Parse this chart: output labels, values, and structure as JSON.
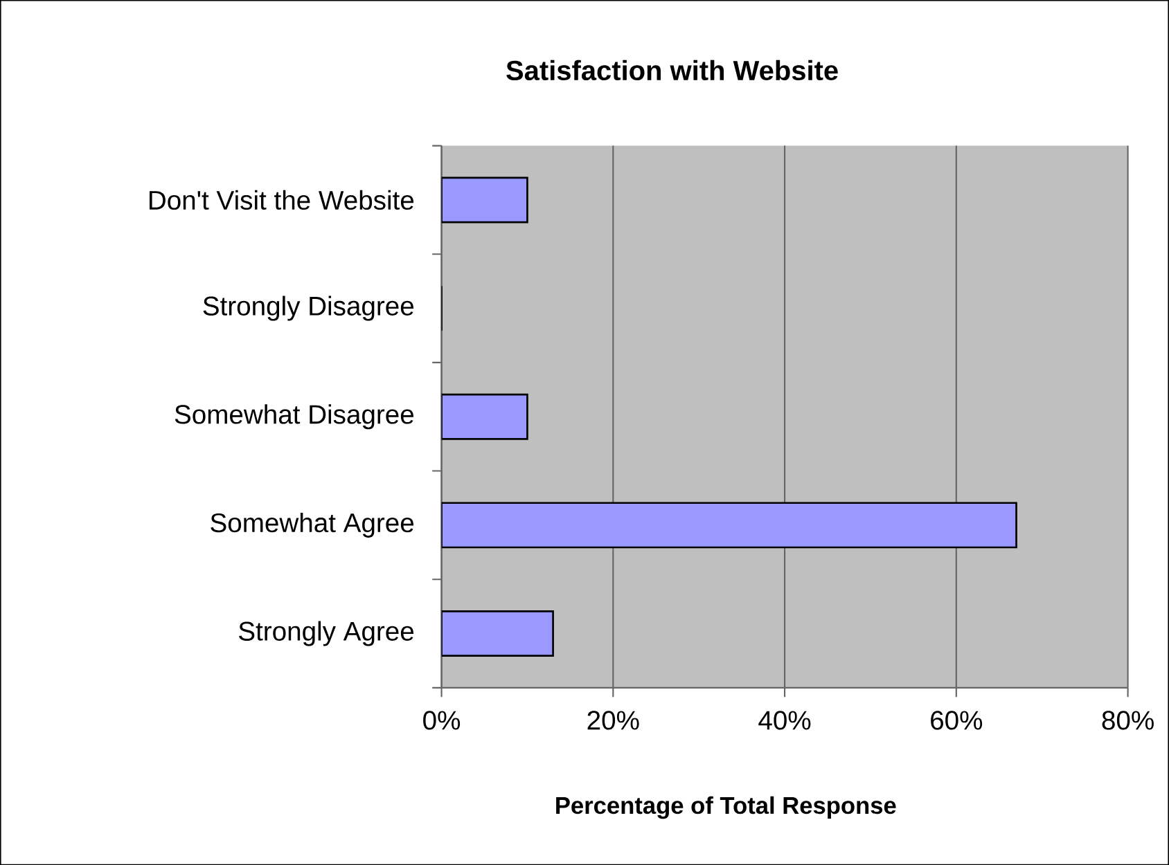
{
  "chart_data": {
    "type": "bar",
    "orientation": "horizontal",
    "title": "Satisfaction with Website",
    "xlabel": "Percentage of Total Response",
    "categories": [
      "Don't Visit the Website",
      "Strongly Disagree",
      "Somewhat Disagree",
      "Somewhat Agree",
      "Strongly Agree"
    ],
    "values": [
      10,
      0,
      10,
      67,
      13
    ],
    "color": "#9999ff",
    "xlim": [
      0,
      80
    ],
    "xticks": [
      {
        "value": 0,
        "label": "0%"
      },
      {
        "value": 20,
        "label": "20%"
      },
      {
        "value": 40,
        "label": "40%"
      },
      {
        "value": 60,
        "label": "60%"
      },
      {
        "value": 80,
        "label": "80%"
      }
    ],
    "grid": "x"
  }
}
